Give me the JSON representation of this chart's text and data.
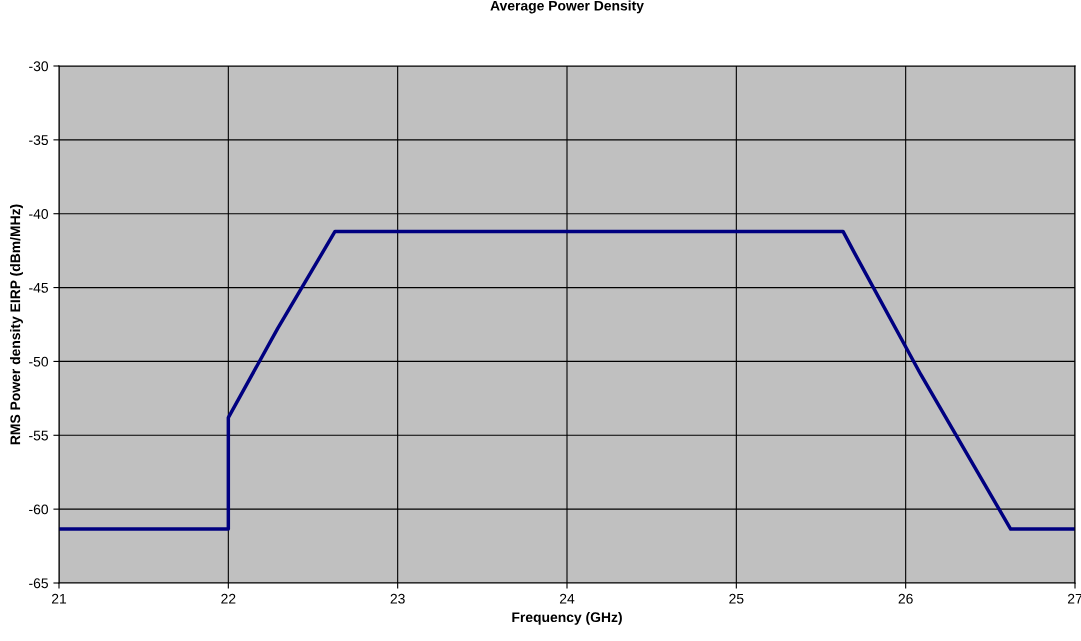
{
  "chart_data": {
    "type": "line",
    "title": "Average Power Density",
    "xlabel": "Frequency (GHz)",
    "ylabel": "RMS Power density EIRP (dBm/MHz)",
    "series": [
      {
        "color": "#000080",
        "x": [
          21,
          22,
          22,
          22.29,
          22.63,
          25.63,
          25.7,
          26.09,
          26.62,
          27
        ],
        "values": [
          -61.35,
          -61.35,
          -53.8,
          -47.8,
          -41.2,
          -41.2,
          -42.7,
          -50.9,
          -61.35,
          -61.35
        ]
      }
    ],
    "xlim": [
      21,
      27
    ],
    "xticks": [
      21,
      22,
      23,
      24,
      25,
      26,
      27
    ],
    "ylim": [
      -65,
      -30
    ],
    "yticks": [
      -65,
      -60,
      -55,
      -50,
      -45,
      -40,
      -35,
      -30
    ],
    "grid": true,
    "legend": false,
    "marker": "none",
    "line_style": "solid"
  }
}
